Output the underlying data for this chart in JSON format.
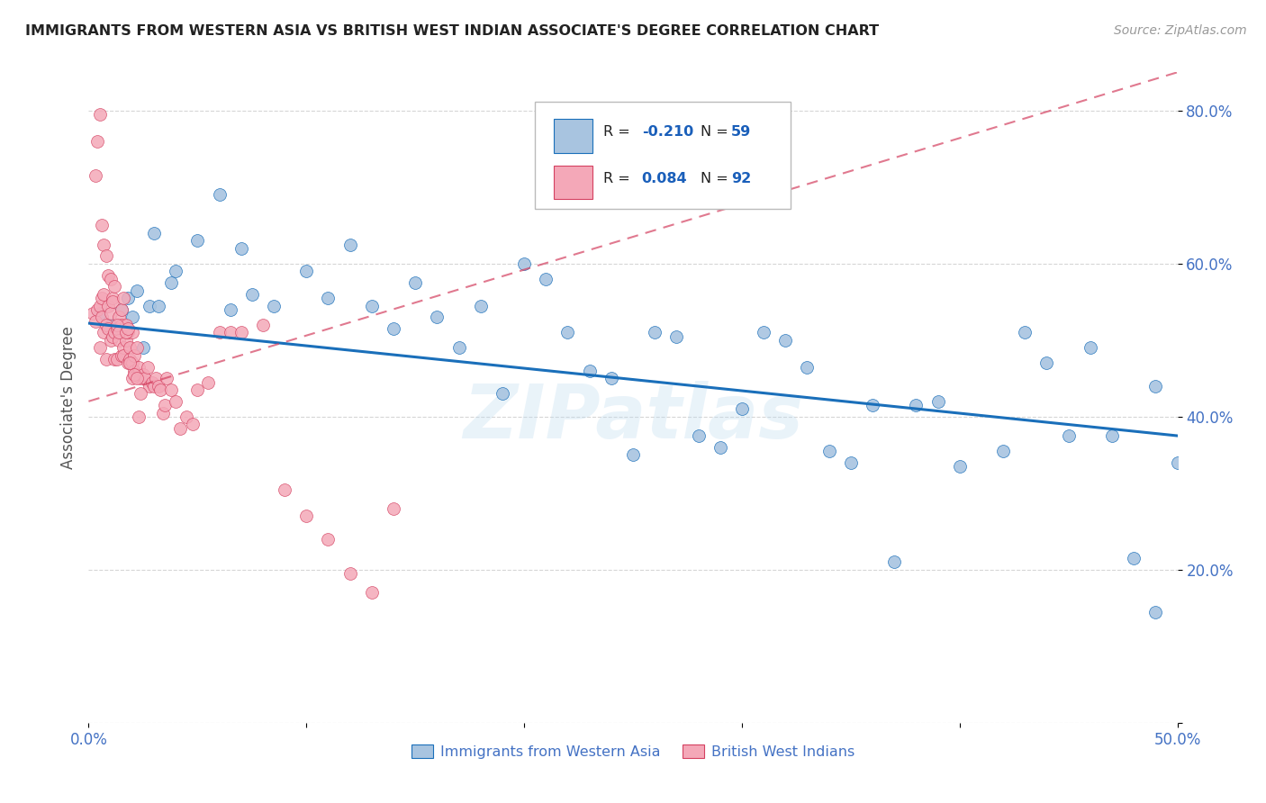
{
  "title": "IMMIGRANTS FROM WESTERN ASIA VS BRITISH WEST INDIAN ASSOCIATE'S DEGREE CORRELATION CHART",
  "source": "Source: ZipAtlas.com",
  "ylabel": "Associate's Degree",
  "xlim": [
    0.0,
    0.5
  ],
  "ylim": [
    0.0,
    0.85
  ],
  "x_ticks": [
    0.0,
    0.1,
    0.2,
    0.3,
    0.4,
    0.5
  ],
  "x_tick_labels": [
    "0.0%",
    "",
    "",
    "",
    "",
    "50.0%"
  ],
  "y_ticks": [
    0.0,
    0.2,
    0.4,
    0.6,
    0.8
  ],
  "y_tick_labels": [
    "",
    "20.0%",
    "40.0%",
    "60.0%",
    "80.0%"
  ],
  "blue_R": "-0.210",
  "blue_N": "59",
  "pink_R": "0.084",
  "pink_N": "92",
  "blue_color": "#a8c4e0",
  "pink_color": "#f4a8b8",
  "blue_line_color": "#1a6fba",
  "pink_line_color": "#d44060",
  "watermark": "ZIPatlas",
  "blue_scatter_x": [
    0.005,
    0.01,
    0.015,
    0.018,
    0.02,
    0.022,
    0.025,
    0.028,
    0.03,
    0.032,
    0.038,
    0.04,
    0.05,
    0.06,
    0.065,
    0.07,
    0.075,
    0.085,
    0.1,
    0.11,
    0.12,
    0.13,
    0.14,
    0.15,
    0.16,
    0.17,
    0.18,
    0.19,
    0.2,
    0.21,
    0.22,
    0.23,
    0.24,
    0.25,
    0.26,
    0.27,
    0.28,
    0.29,
    0.3,
    0.31,
    0.32,
    0.33,
    0.34,
    0.35,
    0.36,
    0.37,
    0.38,
    0.39,
    0.4,
    0.42,
    0.43,
    0.44,
    0.45,
    0.46,
    0.47,
    0.48,
    0.49,
    0.49,
    0.5
  ],
  "blue_scatter_y": [
    0.535,
    0.52,
    0.54,
    0.555,
    0.53,
    0.565,
    0.49,
    0.545,
    0.64,
    0.545,
    0.575,
    0.59,
    0.63,
    0.69,
    0.54,
    0.62,
    0.56,
    0.545,
    0.59,
    0.555,
    0.625,
    0.545,
    0.515,
    0.575,
    0.53,
    0.49,
    0.545,
    0.43,
    0.6,
    0.58,
    0.51,
    0.46,
    0.45,
    0.35,
    0.51,
    0.505,
    0.375,
    0.36,
    0.41,
    0.51,
    0.5,
    0.465,
    0.355,
    0.34,
    0.415,
    0.21,
    0.415,
    0.42,
    0.335,
    0.355,
    0.51,
    0.47,
    0.375,
    0.49,
    0.375,
    0.215,
    0.44,
    0.145,
    0.34
  ],
  "pink_scatter_x": [
    0.002,
    0.003,
    0.004,
    0.005,
    0.005,
    0.006,
    0.006,
    0.007,
    0.007,
    0.008,
    0.008,
    0.009,
    0.009,
    0.01,
    0.01,
    0.011,
    0.011,
    0.012,
    0.012,
    0.013,
    0.013,
    0.014,
    0.014,
    0.015,
    0.015,
    0.016,
    0.016,
    0.017,
    0.017,
    0.018,
    0.018,
    0.019,
    0.019,
    0.02,
    0.02,
    0.021,
    0.021,
    0.022,
    0.022,
    0.023,
    0.024,
    0.025,
    0.026,
    0.027,
    0.028,
    0.029,
    0.03,
    0.031,
    0.032,
    0.033,
    0.034,
    0.035,
    0.036,
    0.038,
    0.04,
    0.042,
    0.045,
    0.048,
    0.05,
    0.055,
    0.06,
    0.065,
    0.07,
    0.08,
    0.09,
    0.1,
    0.11,
    0.12,
    0.13,
    0.14,
    0.003,
    0.004,
    0.005,
    0.006,
    0.007,
    0.008,
    0.009,
    0.01,
    0.011,
    0.012,
    0.013,
    0.014,
    0.015,
    0.016,
    0.017,
    0.018,
    0.019,
    0.02,
    0.021,
    0.022,
    0.023,
    0.024
  ],
  "pink_scatter_y": [
    0.535,
    0.525,
    0.54,
    0.49,
    0.545,
    0.53,
    0.555,
    0.51,
    0.56,
    0.475,
    0.52,
    0.515,
    0.545,
    0.5,
    0.535,
    0.505,
    0.555,
    0.475,
    0.51,
    0.475,
    0.515,
    0.5,
    0.53,
    0.48,
    0.52,
    0.49,
    0.48,
    0.5,
    0.52,
    0.47,
    0.51,
    0.49,
    0.475,
    0.47,
    0.51,
    0.46,
    0.48,
    0.455,
    0.49,
    0.465,
    0.45,
    0.455,
    0.45,
    0.465,
    0.44,
    0.445,
    0.44,
    0.45,
    0.44,
    0.435,
    0.405,
    0.415,
    0.45,
    0.435,
    0.42,
    0.385,
    0.4,
    0.39,
    0.435,
    0.445,
    0.51,
    0.51,
    0.51,
    0.52,
    0.305,
    0.27,
    0.24,
    0.195,
    0.17,
    0.28,
    0.715,
    0.76,
    0.795,
    0.65,
    0.625,
    0.61,
    0.585,
    0.58,
    0.55,
    0.57,
    0.52,
    0.51,
    0.54,
    0.555,
    0.51,
    0.515,
    0.47,
    0.45,
    0.455,
    0.45,
    0.4,
    0.43
  ]
}
